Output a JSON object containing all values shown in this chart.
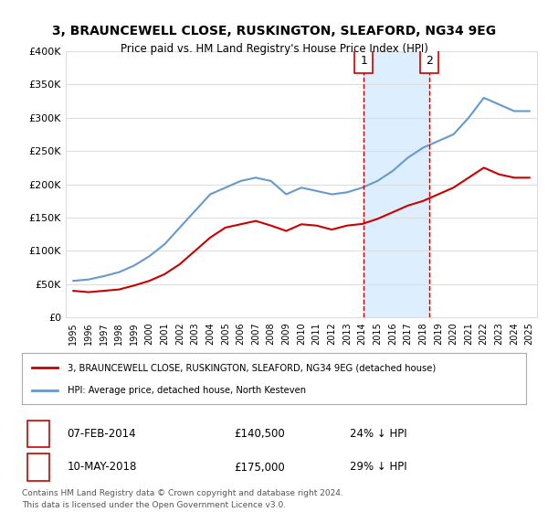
{
  "title": "3, BRAUNCEWELL CLOSE, RUSKINGTON, SLEAFORD, NG34 9EG",
  "subtitle": "Price paid vs. HM Land Registry's House Price Index (HPI)",
  "legend_line1": "3, BRAUNCEWELL CLOSE, RUSKINGTON, SLEAFORD, NG34 9EG (detached house)",
  "legend_line2": "HPI: Average price, detached house, North Kesteven",
  "transaction1_date": "07-FEB-2014",
  "transaction1_price": "£140,500",
  "transaction1_hpi": "24% ↓ HPI",
  "transaction2_date": "10-MAY-2018",
  "transaction2_price": "£175,000",
  "transaction2_hpi": "29% ↓ HPI",
  "footer": "Contains HM Land Registry data © Crown copyright and database right 2024.\nThis data is licensed under the Open Government Licence v3.0.",
  "ylim": [
    0,
    400000
  ],
  "xmin": 1995,
  "xmax": 2025,
  "vline1_x": 2014.1,
  "vline2_x": 2018.4,
  "red_color": "#cc0000",
  "blue_color": "#6699cc",
  "shade_color": "#ddeeff",
  "grid_color": "#dddddd",
  "background_color": "#ffffff"
}
